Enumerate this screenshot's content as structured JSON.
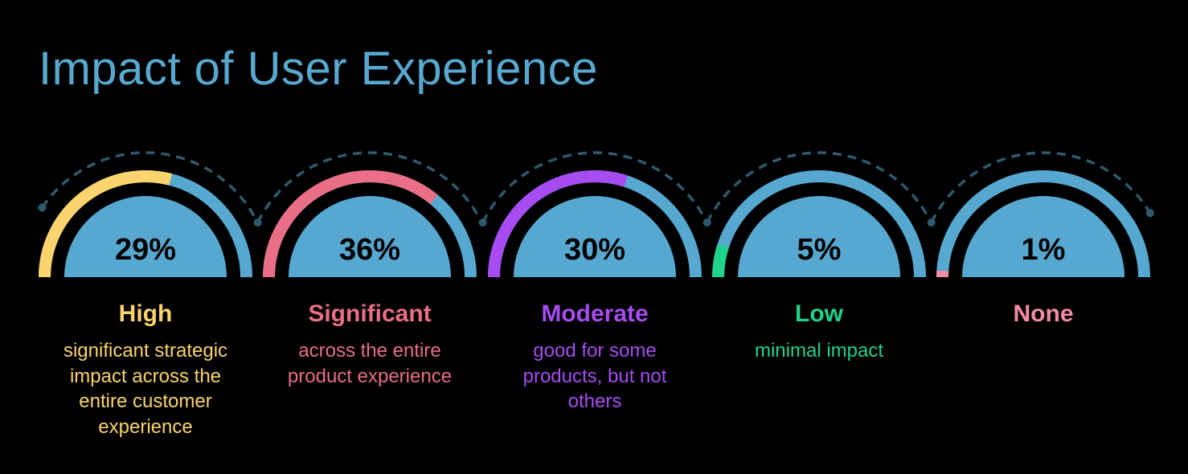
{
  "chart_data": {
    "type": "gauge",
    "title": "Impact of User Experience",
    "track_color": "#57A8D0",
    "dash_color": "#2E5A6E",
    "items": [
      {
        "category": "High",
        "value": 29,
        "value_label": "29%",
        "description": "significant strategic impact across the entire customer experience",
        "desc_lines": [
          "significant strategic",
          "impact across the",
          "entire customer",
          "experience"
        ],
        "color": "#FBD46D"
      },
      {
        "category": "Significant",
        "value": 36,
        "value_label": "36%",
        "description": "across the entire product experience",
        "desc_lines": [
          "across the entire",
          "product experience"
        ],
        "color": "#E96E86"
      },
      {
        "category": "Moderate",
        "value": 30,
        "value_label": "30%",
        "description": "good for some products, but not others",
        "desc_lines": [
          "good for some",
          "products, but not",
          "others"
        ],
        "color": "#A64CF0"
      },
      {
        "category": "Low",
        "value": 5,
        "value_label": "5%",
        "description": "minimal impact",
        "desc_lines": [
          "minimal impact"
        ],
        "color": "#1FD38A"
      },
      {
        "category": "None",
        "value": 1,
        "value_label": "1%",
        "description": "",
        "desc_lines": [],
        "color": "#F48AA5"
      }
    ]
  }
}
